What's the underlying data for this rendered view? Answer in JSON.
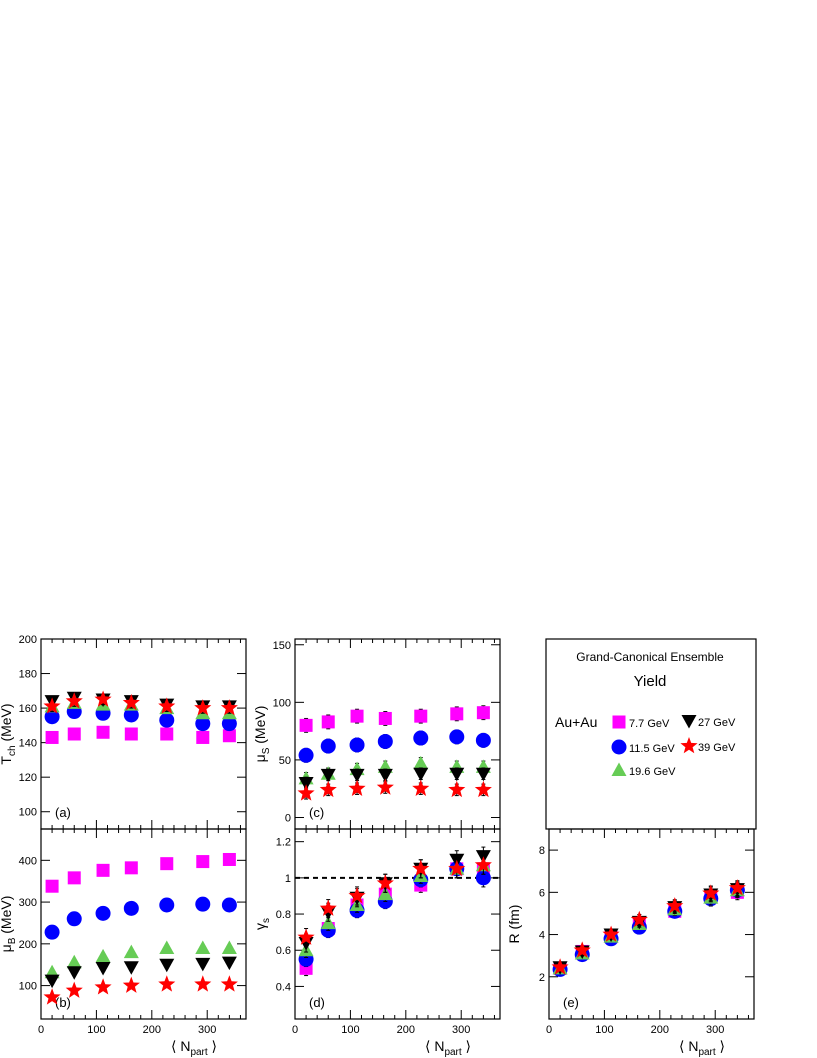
{
  "chart_data": [
    {
      "id": "a",
      "type": "scatter",
      "panel_label": "(a)",
      "ylabel_main": "T",
      "ylabel_sub": "ch",
      "ylabel_unit": " (MeV)",
      "xlim": [
        0,
        370
      ],
      "ylim": [
        90,
        200
      ],
      "yticks": [
        100,
        120,
        140,
        160,
        180,
        200
      ],
      "series": [
        {
          "key": "7.7",
          "x": [
            20,
            60,
            112,
            163,
            227,
            292,
            340
          ],
          "y": [
            143,
            145,
            146,
            145,
            145,
            143,
            144
          ],
          "err": [
            2,
            2,
            2,
            2,
            2,
            2,
            2
          ]
        },
        {
          "key": "11.5",
          "x": [
            20,
            60,
            112,
            163,
            227,
            292,
            340
          ],
          "y": [
            155,
            158,
            157,
            156,
            153,
            151,
            151
          ],
          "err": [
            2,
            2,
            2,
            2,
            2,
            2,
            2
          ]
        },
        {
          "key": "19.6",
          "x": [
            20,
            60,
            112,
            163,
            227,
            292,
            340
          ],
          "y": [
            161,
            163,
            162,
            162,
            160,
            157,
            157
          ],
          "err": [
            2,
            2,
            2,
            2,
            2,
            2,
            2
          ]
        },
        {
          "key": "27",
          "x": [
            20,
            60,
            112,
            163,
            227,
            292,
            340
          ],
          "y": [
            164,
            166,
            165,
            164,
            162,
            161,
            161
          ],
          "err": [
            3,
            3,
            3,
            3,
            3,
            3,
            3
          ]
        },
        {
          "key": "39",
          "x": [
            20,
            60,
            112,
            163,
            227,
            292,
            340
          ],
          "y": [
            161,
            164,
            165,
            163,
            161,
            160,
            160
          ],
          "err": [
            3,
            3,
            3,
            3,
            3,
            3,
            3
          ]
        }
      ]
    },
    {
      "id": "b",
      "type": "scatter",
      "panel_label": "(b)",
      "ylabel_main": "μ",
      "ylabel_sub": "B",
      "ylabel_unit": " (MeV)",
      "xlabel_main": "⟨ N",
      "xlabel_sub": "part",
      "xlabel_end": " ⟩",
      "xlim": [
        0,
        370
      ],
      "ylim": [
        20,
        475
      ],
      "yticks": [
        100,
        200,
        300,
        400
      ],
      "xticks": [
        0,
        100,
        200,
        300
      ],
      "series": [
        {
          "key": "7.7",
          "x": [
            20,
            60,
            112,
            163,
            227,
            292,
            340
          ],
          "y": [
            338,
            358,
            376,
            382,
            392,
            397,
            402
          ],
          "err": [
            8,
            8,
            8,
            8,
            8,
            8,
            8
          ]
        },
        {
          "key": "11.5",
          "x": [
            20,
            60,
            112,
            163,
            227,
            292,
            340
          ],
          "y": [
            228,
            260,
            273,
            285,
            293,
            295,
            293
          ],
          "err": [
            6,
            6,
            6,
            6,
            6,
            6,
            6
          ]
        },
        {
          "key": "19.6",
          "x": [
            20,
            60,
            112,
            163,
            227,
            292,
            340
          ],
          "y": [
            132,
            156,
            170,
            180,
            190,
            190,
            190
          ],
          "err": [
            6,
            6,
            6,
            6,
            6,
            6,
            6
          ]
        },
        {
          "key": "27",
          "x": [
            20,
            60,
            112,
            163,
            227,
            292,
            340
          ],
          "y": [
            112,
            132,
            142,
            144,
            150,
            152,
            155
          ],
          "err": [
            8,
            8,
            8,
            8,
            8,
            8,
            8
          ]
        },
        {
          "key": "39",
          "x": [
            20,
            60,
            112,
            163,
            227,
            292,
            340
          ],
          "y": [
            72,
            88,
            96,
            100,
            103,
            103,
            103
          ],
          "err": [
            6,
            6,
            6,
            6,
            6,
            6,
            6
          ]
        }
      ]
    },
    {
      "id": "c",
      "type": "scatter",
      "panel_label": "(c)",
      "ylabel_main": "μ",
      "ylabel_sub": "S",
      "ylabel_unit": " (MeV)",
      "xlim": [
        0,
        370
      ],
      "ylim": [
        -10,
        155
      ],
      "yticks": [
        0,
        50,
        100,
        150
      ],
      "series": [
        {
          "key": "7.7",
          "x": [
            20,
            60,
            112,
            163,
            227,
            292,
            340
          ],
          "y": [
            80,
            83,
            88,
            86,
            88,
            90,
            91
          ],
          "err": [
            6,
            6,
            6,
            6,
            6,
            6,
            6
          ]
        },
        {
          "key": "11.5",
          "x": [
            20,
            60,
            112,
            163,
            227,
            292,
            340
          ],
          "y": [
            54,
            62,
            63,
            66,
            69,
            70,
            67
          ],
          "err": [
            6,
            6,
            6,
            6,
            6,
            6,
            6
          ]
        },
        {
          "key": "19.6",
          "x": [
            20,
            60,
            112,
            163,
            227,
            292,
            340
          ],
          "y": [
            34,
            38,
            42,
            44,
            47,
            44,
            44
          ],
          "err": [
            5,
            5,
            5,
            5,
            5,
            5,
            5
          ]
        },
        {
          "key": "27",
          "x": [
            20,
            60,
            112,
            163,
            227,
            292,
            340
          ],
          "y": [
            30,
            37,
            37,
            37,
            38,
            38,
            38
          ],
          "err": [
            5,
            5,
            5,
            5,
            5,
            5,
            5
          ]
        },
        {
          "key": "39",
          "x": [
            20,
            60,
            112,
            163,
            227,
            292,
            340
          ],
          "y": [
            21,
            24,
            25,
            26,
            25,
            24,
            24
          ],
          "err": [
            5,
            5,
            5,
            5,
            5,
            5,
            5
          ]
        }
      ]
    },
    {
      "id": "d",
      "type": "scatter",
      "panel_label": "(d)",
      "ylabel_main": "γ",
      "ylabel_sub": "s",
      "ylabel_unit": "",
      "xlabel_main": "⟨ N",
      "xlabel_sub": "part",
      "xlabel_end": " ⟩",
      "xlim": [
        0,
        370
      ],
      "ylim": [
        0.22,
        1.27
      ],
      "yticks": [
        0.4,
        0.6,
        0.8,
        1,
        1.2
      ],
      "xticks": [
        0,
        100,
        200,
        300
      ],
      "reference_line_y": 1,
      "series": [
        {
          "key": "7.7",
          "x": [
            20,
            60,
            112,
            163,
            227,
            292,
            340
          ],
          "y": [
            0.5,
            0.72,
            0.85,
            0.91,
            0.96,
            1.05,
            1.05
          ],
          "err": [
            0.04,
            0.04,
            0.04,
            0.04,
            0.04,
            0.05,
            0.05
          ]
        },
        {
          "key": "11.5",
          "x": [
            20,
            60,
            112,
            163,
            227,
            292,
            340
          ],
          "y": [
            0.55,
            0.71,
            0.82,
            0.87,
            0.99,
            1.05,
            1.0
          ],
          "err": [
            0.04,
            0.04,
            0.04,
            0.04,
            0.04,
            0.05,
            0.05
          ]
        },
        {
          "key": "19.6",
          "x": [
            20,
            60,
            112,
            163,
            227,
            292,
            340
          ],
          "y": [
            0.6,
            0.75,
            0.85,
            0.91,
            1.01,
            1.05,
            1.07
          ],
          "err": [
            0.04,
            0.04,
            0.04,
            0.04,
            0.04,
            0.05,
            0.05
          ]
        },
        {
          "key": "27",
          "x": [
            20,
            60,
            112,
            163,
            227,
            292,
            340
          ],
          "y": [
            0.64,
            0.81,
            0.89,
            0.97,
            1.05,
            1.1,
            1.12
          ],
          "err": [
            0.05,
            0.05,
            0.05,
            0.05,
            0.05,
            0.05,
            0.05
          ]
        },
        {
          "key": "39",
          "x": [
            20,
            60,
            112,
            163,
            227,
            292,
            340
          ],
          "y": [
            0.67,
            0.83,
            0.9,
            0.97,
            1.05,
            1.05,
            1.07
          ],
          "err": [
            0.05,
            0.05,
            0.05,
            0.05,
            0.05,
            0.05,
            0.05
          ]
        }
      ]
    },
    {
      "id": "e",
      "type": "scatter",
      "panel_label": "(e)",
      "ylabel_main": "R (fm)",
      "ylabel_sub": "",
      "ylabel_unit": "",
      "xlabel_main": "⟨ N",
      "xlabel_sub": "part",
      "xlabel_end": " ⟩",
      "xlim": [
        0,
        370
      ],
      "ylim": [
        0,
        9
      ],
      "yticks": [
        2,
        4,
        6,
        8
      ],
      "xticks": [
        0,
        100,
        200,
        300
      ],
      "series": [
        {
          "key": "7.7",
          "x": [
            20,
            60,
            112,
            163,
            227,
            292,
            340
          ],
          "y": [
            2.4,
            3.2,
            3.9,
            4.5,
            5.1,
            5.8,
            6.0
          ],
          "err": [
            0.2,
            0.2,
            0.2,
            0.25,
            0.3,
            0.35,
            0.35
          ]
        },
        {
          "key": "11.5",
          "x": [
            20,
            60,
            112,
            163,
            227,
            292,
            340
          ],
          "y": [
            2.35,
            3.05,
            3.8,
            4.35,
            5.1,
            5.7,
            6.1
          ],
          "err": [
            0.2,
            0.2,
            0.2,
            0.25,
            0.3,
            0.35,
            0.35
          ]
        },
        {
          "key": "19.6",
          "x": [
            20,
            60,
            112,
            163,
            227,
            292,
            340
          ],
          "y": [
            2.4,
            3.1,
            3.9,
            4.5,
            5.2,
            5.75,
            6.1
          ],
          "err": [
            0.2,
            0.2,
            0.2,
            0.25,
            0.3,
            0.35,
            0.35
          ]
        },
        {
          "key": "27",
          "x": [
            20,
            60,
            112,
            163,
            227,
            292,
            340
          ],
          "y": [
            2.45,
            3.2,
            4.0,
            4.6,
            5.3,
            5.9,
            6.15
          ],
          "err": [
            0.2,
            0.2,
            0.2,
            0.25,
            0.3,
            0.35,
            0.35
          ]
        },
        {
          "key": "39",
          "x": [
            20,
            60,
            112,
            163,
            227,
            292,
            340
          ],
          "y": [
            2.45,
            3.25,
            4.0,
            4.7,
            5.35,
            5.95,
            6.2
          ],
          "err": [
            0.2,
            0.2,
            0.2,
            0.25,
            0.3,
            0.35,
            0.35
          ]
        }
      ]
    }
  ],
  "legend": {
    "title": "Grand-Canonical Ensemble",
    "subtitle": "Yield",
    "system": "Au+Au",
    "entries": [
      {
        "key": "7.7",
        "label": "7.7 GeV",
        "marker": "square",
        "color": "#ff00ff"
      },
      {
        "key": "11.5",
        "label": "11.5 GeV",
        "marker": "circle",
        "color": "#0000ff"
      },
      {
        "key": "19.6",
        "label": "19.6 GeV",
        "marker": "triangle-up",
        "color": "#66cc55"
      },
      {
        "key": "27",
        "label": "27 GeV",
        "marker": "triangle-down",
        "color": "#000000"
      },
      {
        "key": "39",
        "label": "39 GeV",
        "marker": "star",
        "color": "#ff0000"
      }
    ]
  }
}
